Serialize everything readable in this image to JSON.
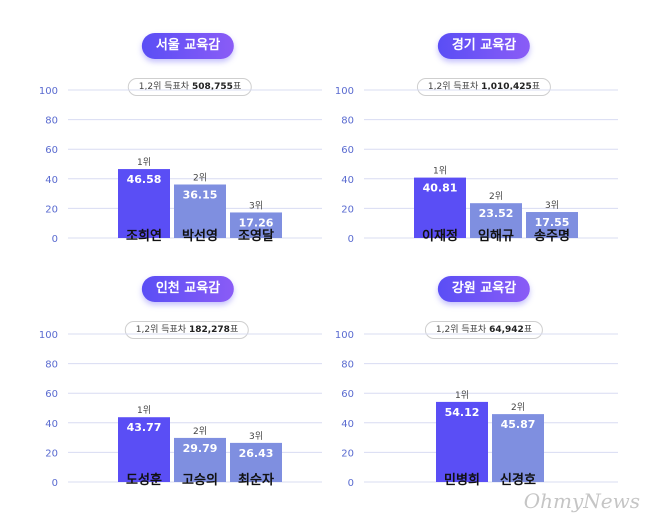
{
  "colors": {
    "first": "#5a4ef5",
    "other": "#7f8fe0",
    "grid": "#d8dcf2",
    "tick": "#5a6bd0"
  },
  "chart_data": [
    {
      "type": "bar",
      "title": "서울 교육감",
      "difference_label": "1,2위 득표차",
      "difference_value": "508,755",
      "difference_unit": "표",
      "categories": [
        "조희연",
        "박선영",
        "조영달"
      ],
      "ranks": [
        "1위",
        "2위",
        "3위"
      ],
      "values": [
        46.58,
        36.15,
        17.26
      ],
      "value_labels": [
        "46.58",
        "36.15",
        "17.26"
      ],
      "yticks": [
        "100",
        "80",
        "60",
        "40",
        "20",
        "0"
      ],
      "ylim": [
        0,
        100
      ]
    },
    {
      "type": "bar",
      "title": "경기 교육감",
      "difference_label": "1,2위 득표차",
      "difference_value": "1,010,425",
      "difference_unit": "표",
      "categories": [
        "이재정",
        "임해규",
        "송주명"
      ],
      "ranks": [
        "1위",
        "2위",
        "3위"
      ],
      "values": [
        40.81,
        23.52,
        17.55
      ],
      "value_labels": [
        "40.81",
        "23.52",
        "17.55"
      ],
      "yticks": [
        "100",
        "80",
        "60",
        "40",
        "20",
        "0"
      ],
      "ylim": [
        0,
        100
      ]
    },
    {
      "type": "bar",
      "title": "인천 교육감",
      "difference_label": "1,2위 득표차",
      "difference_value": "182,278",
      "difference_unit": "표",
      "categories": [
        "도성훈",
        "고승의",
        "최순자"
      ],
      "ranks": [
        "1위",
        "2위",
        "3위"
      ],
      "values": [
        43.77,
        29.79,
        26.43
      ],
      "value_labels": [
        "43.77",
        "29.79",
        "26.43"
      ],
      "yticks": [
        "100",
        "80",
        "60",
        "40",
        "20",
        "0"
      ],
      "ylim": [
        0,
        100
      ]
    },
    {
      "type": "bar",
      "title": "강원 교육감",
      "difference_label": "1,2위 득표차",
      "difference_value": "64,942",
      "difference_unit": "표",
      "categories": [
        "민병희",
        "신경호"
      ],
      "ranks": [
        "1위",
        "2위"
      ],
      "values": [
        54.12,
        45.87
      ],
      "value_labels": [
        "54.12",
        "45.87"
      ],
      "yticks": [
        "100",
        "80",
        "60",
        "40",
        "20",
        "0"
      ],
      "ylim": [
        0,
        100
      ]
    }
  ],
  "watermark": "OhmyNews"
}
